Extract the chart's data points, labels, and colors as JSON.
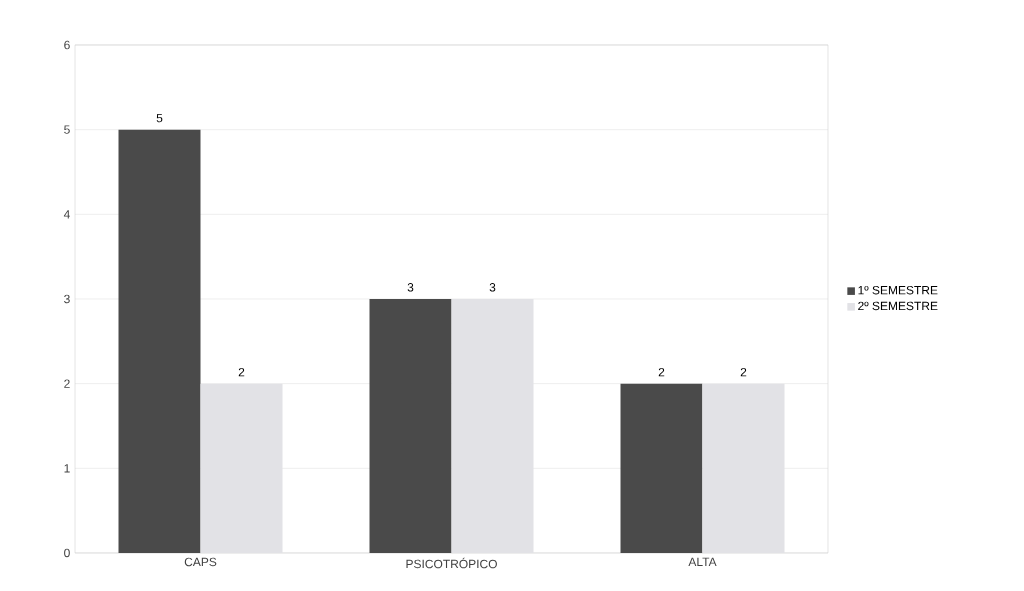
{
  "chart_data": {
    "type": "bar",
    "categories": [
      "CAPS",
      "PSICOTRÓPICO",
      "ALTA"
    ],
    "series": [
      {
        "name": "1º SEMESTRE",
        "color": "#4a4a4a",
        "values": [
          5,
          3,
          2
        ]
      },
      {
        "name": "2º SEMESTRE",
        "color": "#e2e2e6",
        "values": [
          2,
          3,
          2
        ]
      }
    ],
    "ylim": [
      0,
      6
    ],
    "yticks": [
      0,
      1,
      2,
      3,
      4,
      5,
      6
    ],
    "grid": "y",
    "legend": "right",
    "data_labels": true
  }
}
